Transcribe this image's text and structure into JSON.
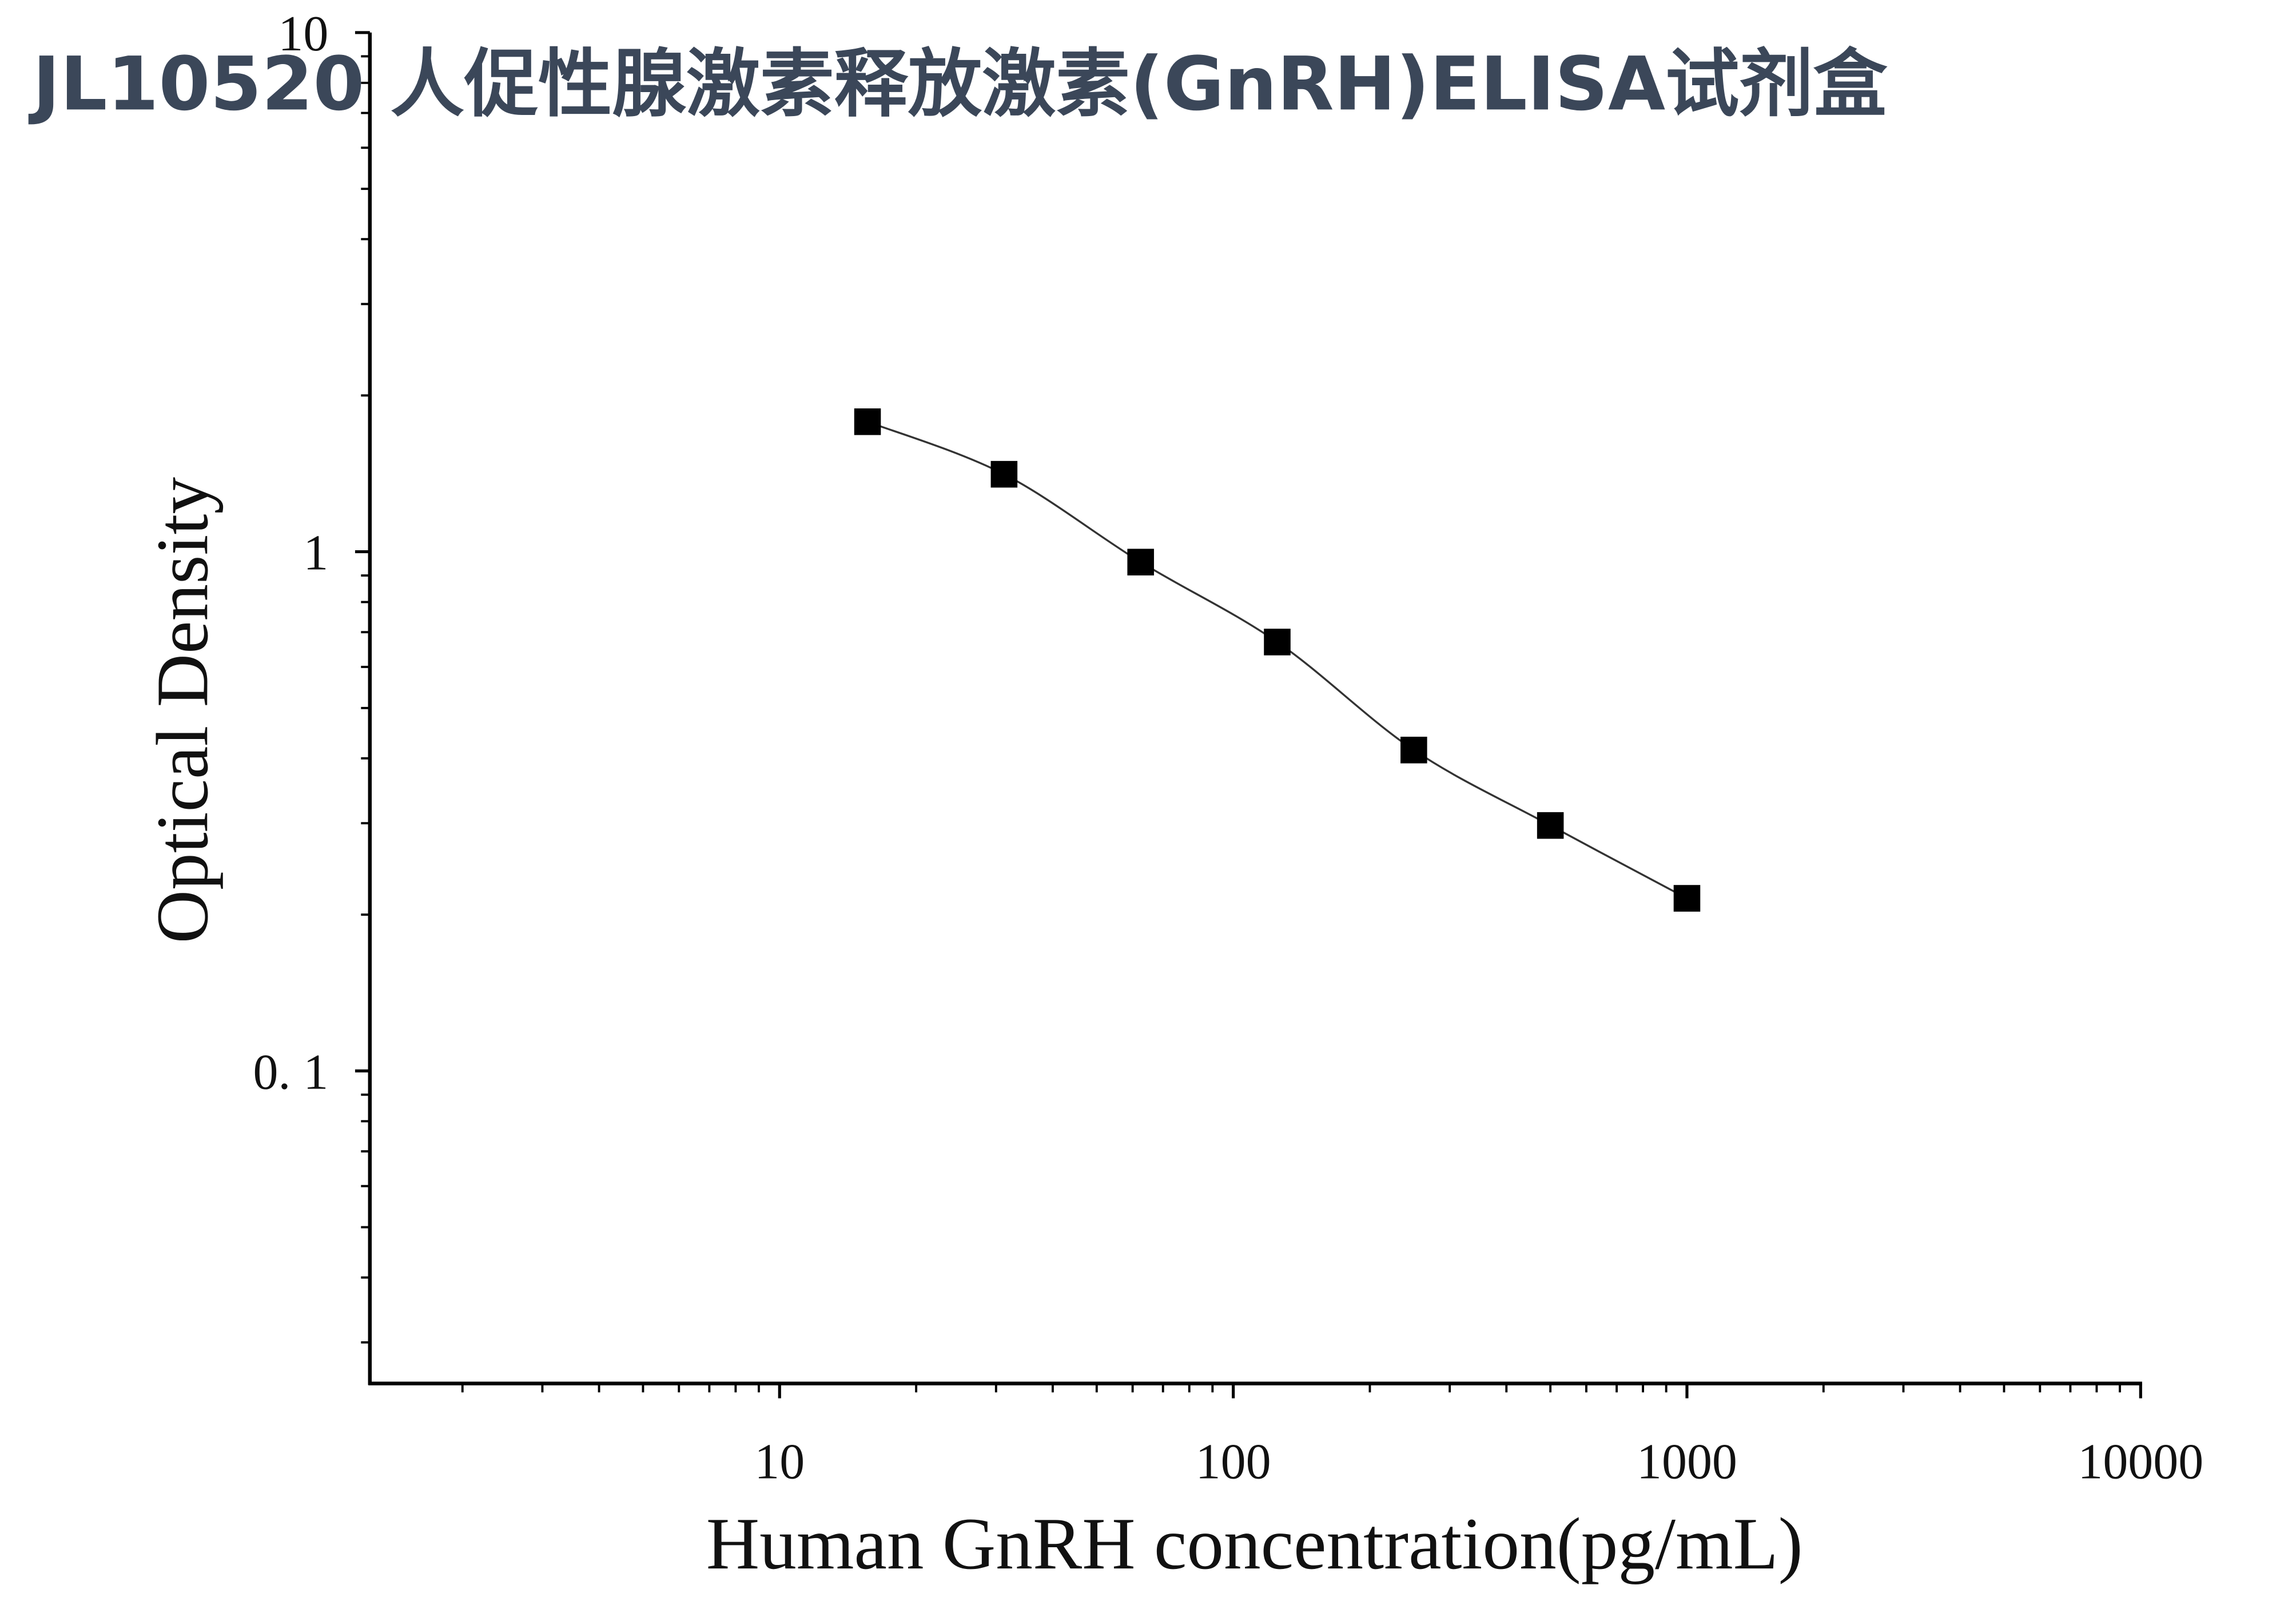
{
  "chart_data": {
    "type": "scatter",
    "title": "JL10520 人促性腺激素释放激素(GnRH)ELISA试剂盒",
    "xlabel": "Human GnRH concentration(pg/mL)",
    "ylabel": "Optical Density",
    "xscale": "log",
    "yscale": "log",
    "xlim": [
      1.25,
      10000
    ],
    "ylim": [
      0.025,
      10
    ],
    "xticks": [
      10,
      100,
      1000,
      10000
    ],
    "yticks": [
      10,
      1,
      {
        "value": 0.1,
        "label": "0. 1"
      }
    ],
    "xminorticks": [
      2,
      3,
      4,
      5,
      6,
      7,
      8,
      9,
      20,
      30,
      40,
      50,
      60,
      70,
      80,
      90,
      200,
      300,
      400,
      500,
      600,
      700,
      800,
      900,
      2000,
      3000,
      4000,
      5000,
      6000,
      7000,
      8000,
      9000
    ],
    "yminorticks": [
      0.03,
      0.04,
      0.05,
      0.06,
      0.07,
      0.08,
      0.09,
      0.2,
      0.3,
      0.4,
      0.5,
      0.6,
      0.7,
      0.8,
      0.9,
      2,
      3,
      4,
      5,
      6,
      7,
      8,
      9
    ],
    "grid": false,
    "series": [
      {
        "color": "#000000",
        "line": true,
        "x": [
          15.625,
          31.25,
          62.5,
          125,
          250,
          500,
          1000
        ],
        "values": [
          1.78,
          1.41,
          0.955,
          0.67,
          0.415,
          0.297,
          0.215
        ]
      }
    ]
  }
}
